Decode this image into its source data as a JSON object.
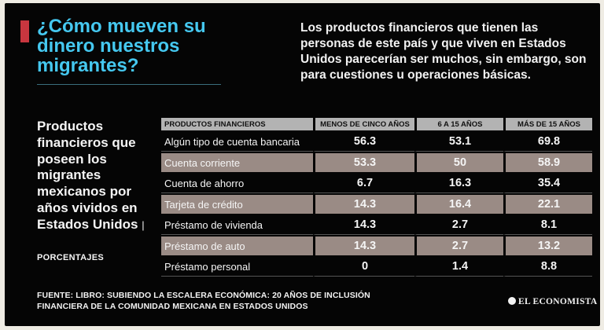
{
  "header": {
    "title": "¿Cómo mueven su dinero nuestros migrantes?",
    "intro": "Los productos financieros que tienen las personas de este país y que viven en Estados Unidos parecerían ser muchos, sin embargo, son para cuestiones u operaciones básicas."
  },
  "colors": {
    "accent": "#c8363f",
    "title": "#45c8f0",
    "row_light": "#9a8b85",
    "header_bg": "#b3b3b3",
    "background": "#050505"
  },
  "chart_data": {
    "type": "table",
    "title": "Productos financieros que poseen los migrantes mexicanos por años vividos en Estados Unidos",
    "separator": "|",
    "unit": "PORCENTAJES",
    "columns": [
      "PRODUCTOS FINANCIEROS",
      "MENOS DE CINCO AÑOS",
      "6 A 15 AÑOS",
      "MÁS DE 15 AÑOS"
    ],
    "rows": [
      {
        "label": "Algún tipo de cuenta bancaria",
        "values": [
          "56.3",
          "53.1",
          "69.8"
        ]
      },
      {
        "label": "Cuenta corriente",
        "values": [
          "53.3",
          "50",
          "58.9"
        ]
      },
      {
        "label": "Cuenta de ahorro",
        "values": [
          "6.7",
          "16.3",
          "35.4"
        ]
      },
      {
        "label": "Tarjeta de crédito",
        "values": [
          "14.3",
          "16.4",
          "22.1"
        ]
      },
      {
        "label": "Préstamo de vivienda",
        "values": [
          "14.3",
          "2.7",
          "8.1"
        ]
      },
      {
        "label": "Préstamo de auto",
        "values": [
          "14.3",
          "2.7",
          "13.2"
        ]
      },
      {
        "label": "Préstamo personal",
        "values": [
          "0",
          "1.4",
          "8.8"
        ]
      }
    ]
  },
  "footer": {
    "source": "FUENTE: LIBRO: SUBIENDO LA ESCALERA ECONÓMICA: 20 AÑOS DE INCLUSIÓN FINANCIERA DE LA COMUNIDAD MEXICANA EN ESTADOS UNIDOS",
    "brand": "EL ECONOMISTA",
    "brand_icon": "globe-icon"
  }
}
